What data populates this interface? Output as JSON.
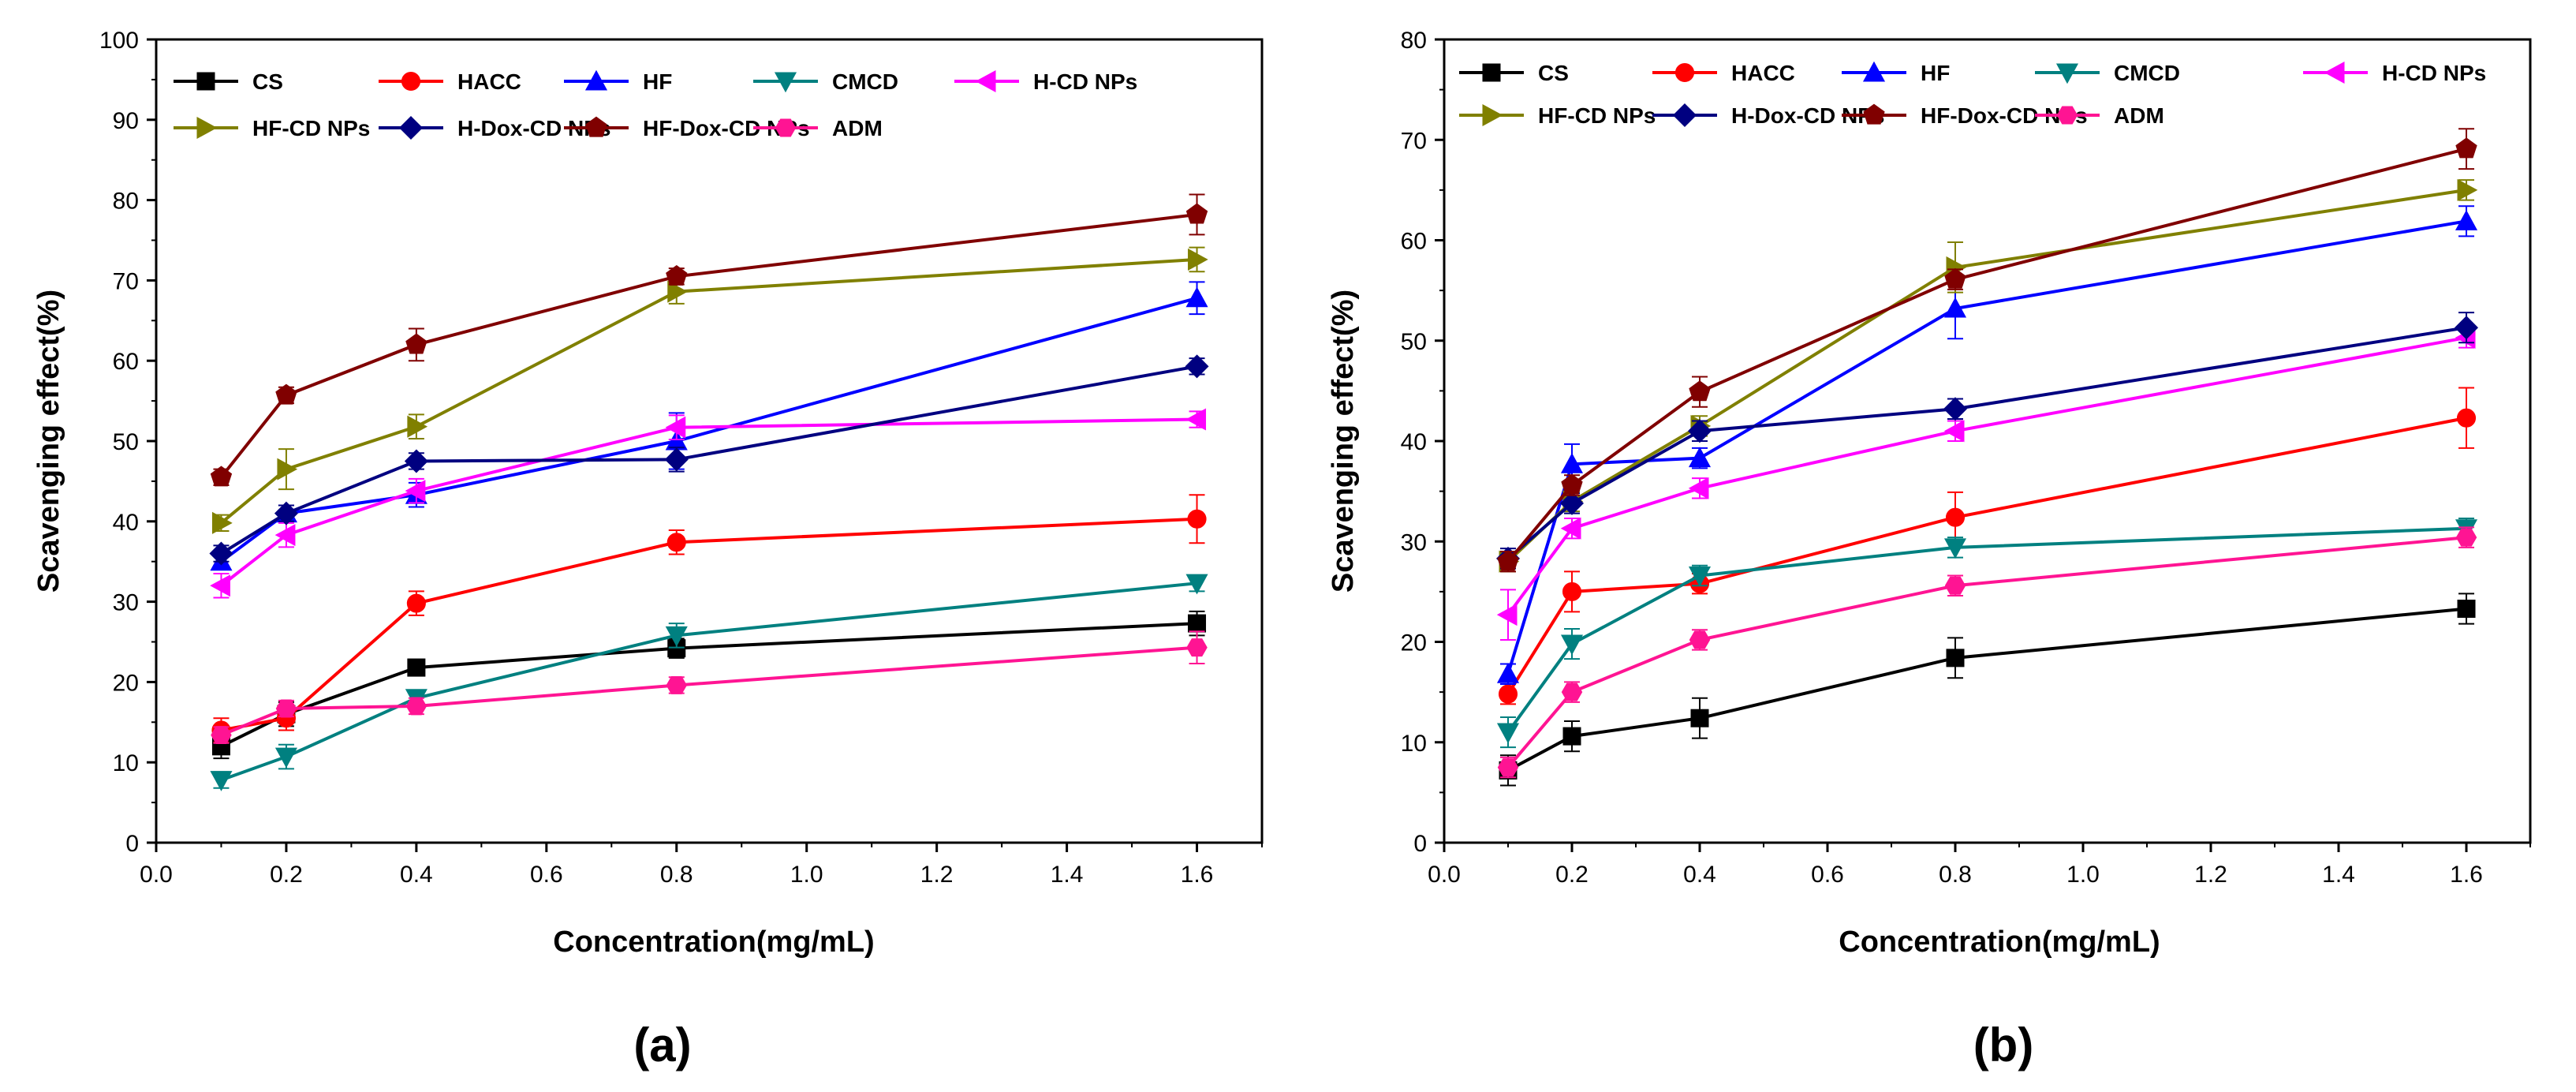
{
  "chart_data": [
    {
      "type": "line",
      "panel_label": "(a)",
      "xlabel": "Concentration(mg/mL)",
      "ylabel": "Scavenging effect(%)",
      "xlim": [
        0,
        1.7
      ],
      "ylim": [
        0,
        100
      ],
      "xticks": [
        "0.0",
        "0.2",
        "0.4",
        "0.6",
        "0.8",
        "1.0",
        "1.2",
        "1.4",
        "1.6"
      ],
      "yticks": [
        "0",
        "10",
        "20",
        "30",
        "40",
        "50",
        "60",
        "70",
        "80",
        "90",
        "100"
      ],
      "grid": false,
      "legend_position": "top",
      "x": [
        0.1,
        0.2,
        0.4,
        0.8,
        1.6
      ],
      "series": [
        {
          "name": "CS",
          "color": "#000000",
          "marker": "square",
          "values": [
            12,
            16,
            21.8,
            24.2,
            27.3
          ],
          "errors": [
            1.5,
            1.5,
            1.0,
            1.2,
            1.5
          ]
        },
        {
          "name": "HACC",
          "color": "#ff0000",
          "marker": "circle",
          "values": [
            14,
            15.5,
            29.8,
            37.4,
            40.3
          ],
          "errors": [
            1.5,
            1.5,
            1.5,
            1.5,
            3.0
          ]
        },
        {
          "name": "HF",
          "color": "#0000ff",
          "marker": "triangle-up",
          "values": [
            35,
            41,
            43.3,
            50,
            67.8
          ],
          "errors": [
            1.0,
            1.0,
            1.5,
            3.5,
            2.0
          ]
        },
        {
          "name": "CMCD",
          "color": "#008080",
          "marker": "triangle-down",
          "values": [
            7.8,
            10.7,
            18,
            25.8,
            32.3
          ],
          "errors": [
            1.0,
            1.5,
            1.0,
            1.5,
            1.0
          ]
        },
        {
          "name": "H-CD NPs",
          "color": "#ff00ff",
          "marker": "triangle-left",
          "values": [
            32,
            38.3,
            43.8,
            51.7,
            52.7
          ],
          "errors": [
            1.5,
            1.5,
            1.5,
            1.5,
            1.0
          ]
        },
        {
          "name": "HF-CD NPs",
          "color": "#808000",
          "marker": "triangle-right",
          "values": [
            39.8,
            46.5,
            51.8,
            68.6,
            72.6
          ],
          "errors": [
            1.0,
            2.5,
            1.5,
            1.5,
            1.5
          ]
        },
        {
          "name": "H-Dox-CD NPs",
          "color": "#000080",
          "marker": "diamond",
          "values": [
            36,
            41,
            47.5,
            47.7,
            59.3
          ],
          "errors": [
            1.0,
            1.0,
            1.0,
            1.5,
            1.0
          ]
        },
        {
          "name": "HF-Dox-CD NPs",
          "color": "#800000",
          "marker": "pentagon",
          "values": [
            45.5,
            55.7,
            62,
            70.5,
            78.2
          ],
          "errors": [
            1.0,
            1.0,
            2.0,
            1.0,
            2.5
          ]
        },
        {
          "name": "ADM",
          "color": "#ff1493",
          "marker": "hexagon",
          "values": [
            13.4,
            16.7,
            17,
            19.6,
            24.3
          ],
          "errors": [
            1.0,
            1.0,
            1.0,
            1.0,
            2.0
          ]
        }
      ]
    },
    {
      "type": "line",
      "panel_label": "(b)",
      "xlabel": "Concentration(mg/mL)",
      "ylabel": "Scavenging effect(%)",
      "xlim": [
        0,
        1.7
      ],
      "ylim": [
        0,
        80
      ],
      "xticks": [
        "0.0",
        "0.2",
        "0.4",
        "0.6",
        "0.8",
        "1.0",
        "1.2",
        "1.4",
        "1.6"
      ],
      "yticks": [
        "0",
        "10",
        "20",
        "30",
        "40",
        "50",
        "60",
        "70",
        "80"
      ],
      "grid": false,
      "legend_position": "top",
      "x": [
        0.1,
        0.2,
        0.4,
        0.8,
        1.6
      ],
      "series": [
        {
          "name": "CS",
          "color": "#000000",
          "marker": "square",
          "values": [
            7.2,
            10.6,
            12.4,
            18.4,
            23.3
          ],
          "errors": [
            1.5,
            1.5,
            2.0,
            2.0,
            1.5
          ]
        },
        {
          "name": "HACC",
          "color": "#ff0000",
          "marker": "circle",
          "values": [
            14.8,
            25,
            25.8,
            32.4,
            42.3
          ],
          "errors": [
            1.0,
            2.0,
            1.0,
            2.5,
            3.0
          ]
        },
        {
          "name": "HF",
          "color": "#0000ff",
          "marker": "triangle-up",
          "values": [
            16.8,
            37.7,
            38.3,
            53.2,
            61.9
          ],
          "errors": [
            1.0,
            2.0,
            1.0,
            3.0,
            1.5
          ]
        },
        {
          "name": "CMCD",
          "color": "#008080",
          "marker": "triangle-down",
          "values": [
            11,
            19.8,
            26.6,
            29.4,
            31.3
          ],
          "errors": [
            1.5,
            1.5,
            1.0,
            1.0,
            1.0
          ]
        },
        {
          "name": "H-CD NPs",
          "color": "#ff00ff",
          "marker": "triangle-left",
          "values": [
            22.7,
            31.3,
            35.3,
            41,
            50.3
          ],
          "errors": [
            2.5,
            1.0,
            1.0,
            1.0,
            1.0
          ]
        },
        {
          "name": "HF-CD NPs",
          "color": "#808000",
          "marker": "triangle-right",
          "values": [
            28,
            34,
            41.5,
            57.3,
            65
          ],
          "errors": [
            1.0,
            1.0,
            1.0,
            2.5,
            1.0
          ]
        },
        {
          "name": "H-Dox-CD NPs",
          "color": "#000080",
          "marker": "diamond",
          "values": [
            28.3,
            33.8,
            41,
            43.2,
            51.3
          ],
          "errors": [
            1.0,
            1.0,
            1.0,
            1.0,
            1.5
          ]
        },
        {
          "name": "HF-Dox-CD NPs",
          "color": "#800000",
          "marker": "pentagon",
          "values": [
            28,
            35.6,
            44.9,
            56.1,
            69.1
          ],
          "errors": [
            1.0,
            1.0,
            1.5,
            1.0,
            2.0
          ]
        },
        {
          "name": "ADM",
          "color": "#ff1493",
          "marker": "hexagon",
          "values": [
            7.5,
            15,
            20.2,
            25.6,
            30.4
          ],
          "errors": [
            1.0,
            1.0,
            1.0,
            1.0,
            1.0
          ]
        }
      ]
    }
  ]
}
